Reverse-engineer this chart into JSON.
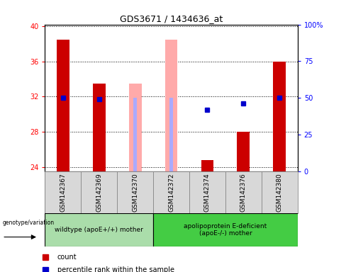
{
  "title": "GDS3671 / 1434636_at",
  "samples": [
    "GSM142367",
    "GSM142369",
    "GSM142370",
    "GSM142372",
    "GSM142374",
    "GSM142376",
    "GSM142380"
  ],
  "ylim_left": [
    23.5,
    40.2
  ],
  "ylim_right": [
    0,
    100
  ],
  "yticks_left": [
    24,
    28,
    32,
    36,
    40
  ],
  "yticks_right": [
    0,
    25,
    50,
    75,
    100
  ],
  "ytick_labels_right": [
    "0",
    "25",
    "50",
    "75",
    "100%"
  ],
  "bar_values": [
    38.5,
    33.5,
    null,
    null,
    24.8,
    28.0,
    36.0
  ],
  "bar_bottom": 23.5,
  "bar_values_absent_value": [
    null,
    null,
    33.5,
    38.5,
    null,
    null,
    null
  ],
  "bar_values_absent_rank": [
    null,
    null,
    31.9,
    31.9,
    null,
    null,
    null
  ],
  "percentile_rank": [
    31.9,
    31.7,
    null,
    null,
    30.5,
    31.2,
    31.9
  ],
  "group1_label": "wildtype (apoE+/+) mother",
  "group2_label": "apolipoprotein E-deficient\n(apoE-/-) mother",
  "group_label_prefix": "genotype/variation",
  "legend_count_color": "#cc0000",
  "legend_rank_color": "#0000cc",
  "legend_absent_value_color": "#ffaaaa",
  "legend_absent_rank_color": "#aaaaff",
  "bar_width": 0.35,
  "plot_bg": "#ffffff",
  "sample_box_bg": "#d8d8d8",
  "group1_bg": "#aaddaa",
  "group2_bg": "#44cc44",
  "grid_color": "#000000",
  "title_fontsize": 9,
  "tick_fontsize": 7,
  "label_fontsize": 6.5,
  "legend_fontsize": 7
}
